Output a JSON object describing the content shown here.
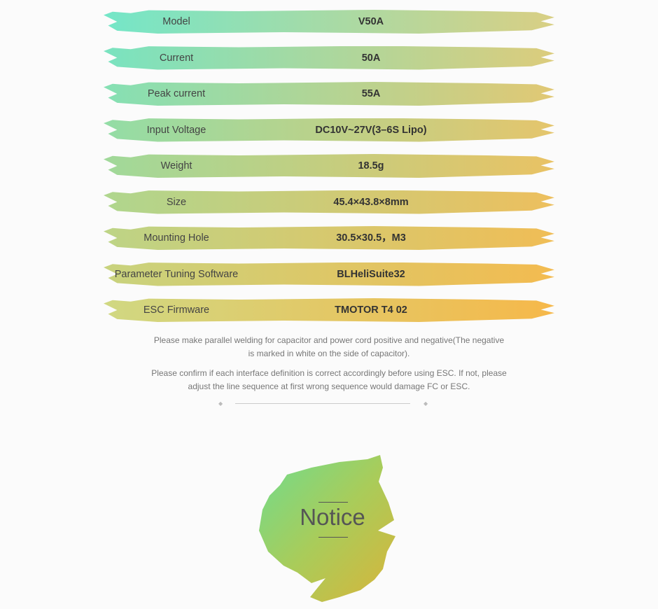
{
  "specs": [
    {
      "label": "Model",
      "value": "V50A"
    },
    {
      "label": "Current",
      "value": "50A"
    },
    {
      "label": "Peak current",
      "value": "55A"
    },
    {
      "label": "Input Voltage",
      "value": "DC10V~27V(3–6S Lipo)"
    },
    {
      "label": "Weight",
      "value": "18.5g"
    },
    {
      "label": "Size",
      "value": "45.4×43.8×8mm"
    },
    {
      "label": "Mounting Hole",
      "value": "30.5×30.5，M3"
    },
    {
      "label": "Parameter Tuning Software",
      "value": "BLHeliSuite32"
    },
    {
      "label": "ESC Firmware",
      "value": "TMOTOR T4 02"
    }
  ],
  "notes": [
    "Please make parallel welding for capacitor and power cord positive and negative(The negative is marked in white on the side of capacitor).",
    "Please confirm if each interface definition is correct accordingly before using ESC. If not, please adjust the line sequence at first wrong sequence would damage FC or ESC."
  ],
  "section_title": "Notice"
}
